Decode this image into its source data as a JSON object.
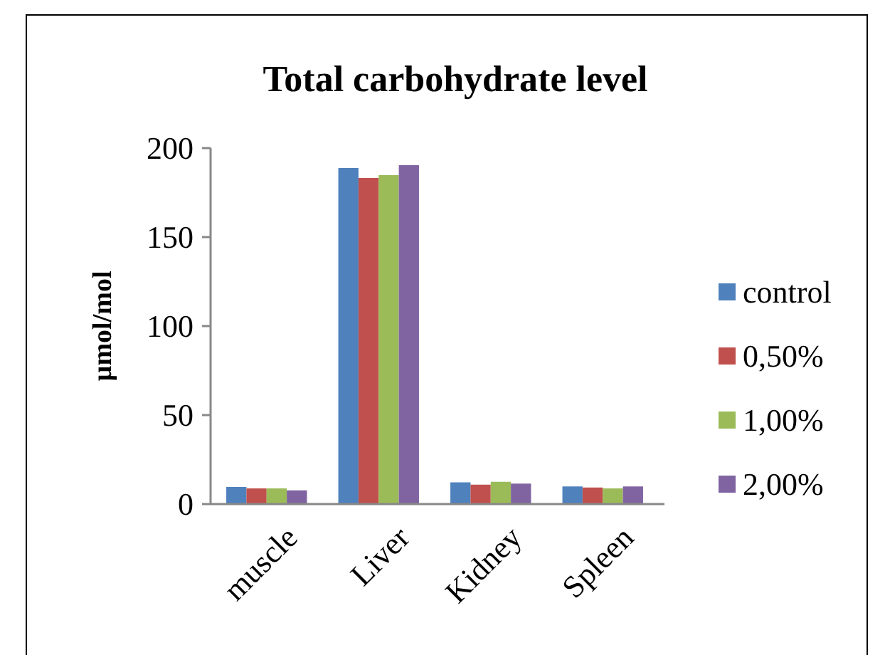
{
  "chart_data": {
    "type": "bar",
    "title": "Total carbohydrate level",
    "ylabel": "µmol/mol",
    "categories": [
      "muscle",
      "Liver",
      "Kidney",
      "Spleen"
    ],
    "series": [
      {
        "name": "control",
        "color": "#4f81bd",
        "values": [
          9.6,
          188.8,
          12.2,
          9.9
        ]
      },
      {
        "name": "0,50%",
        "color": "#c0504d",
        "values": [
          8.8,
          183.2,
          10.9,
          9.3
        ]
      },
      {
        "name": "1,00%",
        "color": "#9bbb59",
        "values": [
          8.8,
          184.8,
          12.5,
          8.8
        ]
      },
      {
        "name": "2,00%",
        "color": "#8064a2",
        "values": [
          7.7,
          190.4,
          11.5,
          9.9
        ]
      }
    ],
    "ylim": [
      0,
      200
    ],
    "yticks": [
      0,
      50,
      100,
      150,
      200
    ],
    "grid": false,
    "legend": "right"
  }
}
